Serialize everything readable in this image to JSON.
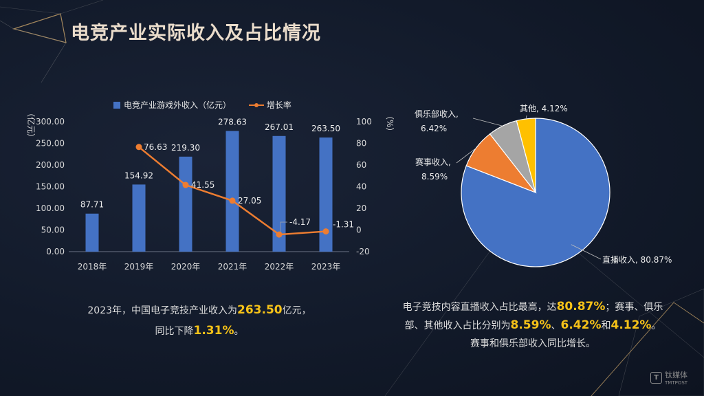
{
  "page": {
    "title": "电竞产业实际收入及占比情况",
    "watermark": {
      "name": "钛媒体",
      "sub": "TMTPOST",
      "glyph": "T"
    }
  },
  "captions": {
    "left": {
      "line1_pre": "2023年，中国电子竞技产业收入为",
      "line1_value": "263.50",
      "line1_post": "亿元，",
      "line2_pre": "同比下降",
      "line2_value": "1.31%",
      "line2_post": "。"
    },
    "right": {
      "line1_pre": "电子竞技内容直播收入占比最高，达",
      "line1_value": "80.87%",
      "line1_post": "；赛事、俱乐",
      "line2_pre": "部、其他收入占比分别为",
      "line2_v1": "8.59%",
      "line2_sep1": "、",
      "line2_v2": "6.42%",
      "line2_sep2": "和",
      "line2_v3": "4.12%",
      "line2_post": "。",
      "line3": "赛事和俱乐部收入同比增长。"
    }
  },
  "colors": {
    "bar": "#4472c4",
    "line": "#ed7d31",
    "highlight": "#f6c218"
  },
  "chart_data": [
    {
      "type": "bar",
      "categories": [
        "2018年",
        "2019年",
        "2020年",
        "2021年",
        "2022年",
        "2023年"
      ],
      "series": [
        {
          "name": "电竞产业游戏外收入（亿元）",
          "type": "bar",
          "axis": "left",
          "values": [
            87.71,
            154.92,
            219.3,
            278.63,
            267.01,
            263.5
          ],
          "labels": [
            "87.71",
            "154.92",
            "219.30",
            "278.63",
            "267.01",
            "263.50"
          ]
        },
        {
          "name": "增长率",
          "type": "line",
          "axis": "right",
          "values": [
            null,
            76.63,
            41.55,
            27.05,
            -4.17,
            -1.31
          ],
          "labels": [
            "",
            "76.63",
            "41.55",
            "27.05",
            "-4.17",
            "-1.31"
          ]
        }
      ],
      "y_left": {
        "label": "（亿元）",
        "min": 0,
        "max": 300,
        "ticks": [
          "0.00",
          "50.00",
          "100.00",
          "150.00",
          "200.00",
          "250.00",
          "300.00"
        ]
      },
      "y_right": {
        "label": "（%）",
        "min": -20,
        "max": 100,
        "ticks": [
          "-20",
          "0",
          "20",
          "40",
          "60",
          "80",
          "100"
        ]
      },
      "legend": "top",
      "grid": false
    },
    {
      "type": "pie",
      "slices": [
        {
          "name": "直播收入",
          "value": 80.87,
          "label": "直播收入, 80.87%",
          "color": "#4472c4"
        },
        {
          "name": "赛事收入",
          "value": 8.59,
          "label": "赛事收入,",
          "label2": "8.59%",
          "color": "#ed7d31"
        },
        {
          "name": "俱乐部收入",
          "value": 6.42,
          "label": "俱乐部收入,",
          "label2": "6.42%",
          "color": "#a5a5a5"
        },
        {
          "name": "其他",
          "value": 4.12,
          "label": "其他, 4.12%",
          "color": "#ffc000"
        }
      ]
    }
  ]
}
